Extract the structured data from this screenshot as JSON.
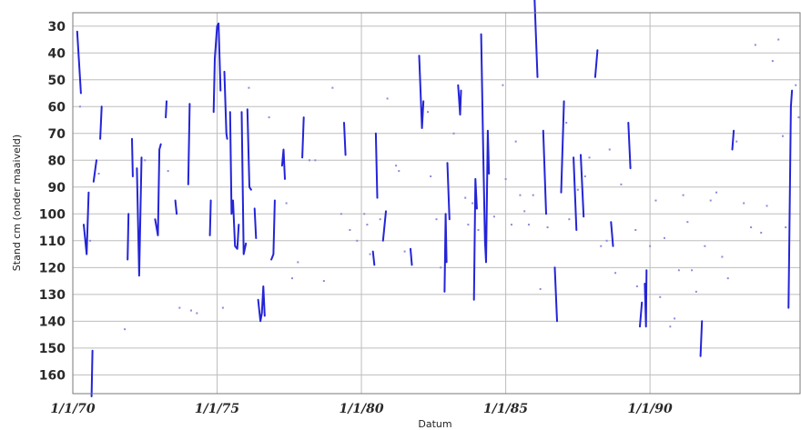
{
  "colors": {
    "series": "#2424d8",
    "grid": "#bdbdbd",
    "frame": "#7a7a7a",
    "background": "#ffffff"
  },
  "chart_data": {
    "type": "line",
    "xlabel": "Datum",
    "ylabel": "Stand cm (onder maaiveld)",
    "x_unit": "year",
    "ylim": [
      167,
      25
    ],
    "y_inverted": true,
    "y_ticks": [
      "30",
      "40",
      "50",
      "60",
      "70",
      "80",
      "90",
      "100",
      "110",
      "120",
      "130",
      "140",
      "150",
      "160"
    ],
    "xlim": [
      1970.0,
      1995.2
    ],
    "x_ticks": [
      {
        "value": 1970,
        "label": "1/1/70"
      },
      {
        "value": 1975,
        "label": "1/1/75"
      },
      {
        "value": 1980,
        "label": "1/1/80"
      },
      {
        "value": 1985,
        "label": "1/1/85"
      },
      {
        "value": 1990,
        "label": "1/1/90"
      }
    ],
    "grid": true,
    "series": [
      {
        "segments": [
          [
            [
              1970.15,
              32
            ],
            [
              1970.28,
              55
            ]
          ],
          [
            [
              1970.38,
              104
            ],
            [
              1970.48,
              115
            ],
            [
              1970.55,
              92
            ]
          ],
          [
            [
              1970.65,
              168
            ],
            [
              1970.68,
              151
            ]
          ],
          [
            [
              1970.72,
              88
            ],
            [
              1970.82,
              80
            ]
          ],
          [
            [
              1970.95,
              72
            ],
            [
              1971.0,
              60
            ]
          ],
          [
            [
              1971.9,
              117
            ],
            [
              1971.93,
              100
            ]
          ],
          [
            [
              1972.05,
              72
            ],
            [
              1972.08,
              86
            ]
          ],
          [
            [
              1972.22,
              83
            ],
            [
              1972.3,
              123
            ],
            [
              1972.38,
              79
            ]
          ],
          [
            [
              1972.85,
              102
            ],
            [
              1972.95,
              108
            ],
            [
              1973.0,
              76
            ],
            [
              1973.05,
              74
            ]
          ],
          [
            [
              1973.22,
              64
            ],
            [
              1973.25,
              58
            ]
          ],
          [
            [
              1973.55,
              95
            ],
            [
              1973.6,
              100
            ]
          ],
          [
            [
              1974.0,
              89
            ],
            [
              1974.05,
              59
            ]
          ],
          [
            [
              1974.75,
              108
            ],
            [
              1974.78,
              95
            ]
          ],
          [
            [
              1974.88,
              62
            ],
            [
              1974.92,
              42
            ],
            [
              1975.0,
              30
            ],
            [
              1975.05,
              29
            ],
            [
              1975.12,
              54
            ]
          ],
          [
            [
              1975.25,
              47
            ],
            [
              1975.32,
              70
            ],
            [
              1975.35,
              72
            ]
          ],
          [
            [
              1975.45,
              62
            ],
            [
              1975.5,
              100
            ],
            [
              1975.55,
              95
            ],
            [
              1975.62,
              112
            ],
            [
              1975.7,
              113
            ],
            [
              1975.75,
              104
            ]
          ],
          [
            [
              1975.85,
              62
            ],
            [
              1975.92,
              115
            ],
            [
              1976.0,
              111
            ]
          ],
          [
            [
              1976.05,
              61
            ],
            [
              1976.12,
              90
            ],
            [
              1976.18,
              91
            ]
          ],
          [
            [
              1976.3,
              98
            ],
            [
              1976.35,
              109
            ]
          ],
          [
            [
              1976.42,
              132
            ],
            [
              1976.5,
              140
            ],
            [
              1976.55,
              137
            ],
            [
              1976.6,
              127
            ],
            [
              1976.65,
              138
            ]
          ],
          [
            [
              1976.88,
              117
            ],
            [
              1976.95,
              115
            ],
            [
              1977.0,
              95
            ]
          ],
          [
            [
              1977.25,
              82
            ],
            [
              1977.3,
              76
            ],
            [
              1977.35,
              87
            ]
          ],
          [
            [
              1977.95,
              79
            ],
            [
              1978.0,
              64
            ]
          ],
          [
            [
              1979.4,
              66
            ],
            [
              1979.45,
              78
            ]
          ],
          [
            [
              1980.4,
              114
            ],
            [
              1980.45,
              119
            ]
          ],
          [
            [
              1980.5,
              70
            ],
            [
              1980.55,
              94
            ]
          ],
          [
            [
              1980.75,
              110
            ],
            [
              1980.85,
              99
            ]
          ],
          [
            [
              1981.7,
              113
            ],
            [
              1981.75,
              119
            ]
          ],
          [
            [
              1982.0,
              41
            ],
            [
              1982.1,
              68
            ],
            [
              1982.15,
              58
            ]
          ],
          [
            [
              1982.88,
              129
            ],
            [
              1982.92,
              100
            ],
            [
              1982.95,
              118
            ]
          ],
          [
            [
              1982.98,
              81
            ],
            [
              1983.05,
              102
            ]
          ],
          [
            [
              1983.35,
              52
            ],
            [
              1983.42,
              63
            ],
            [
              1983.45,
              54
            ]
          ],
          [
            [
              1983.9,
              132
            ],
            [
              1983.95,
              87
            ],
            [
              1984.0,
              98
            ]
          ],
          [
            [
              1984.15,
              33
            ],
            [
              1984.22,
              77
            ],
            [
              1984.28,
              110
            ],
            [
              1984.32,
              118
            ],
            [
              1984.38,
              69
            ],
            [
              1984.42,
              85
            ]
          ],
          [
            [
              1986.0,
              20
            ],
            [
              1986.1,
              49
            ]
          ],
          [
            [
              1986.3,
              69
            ],
            [
              1986.4,
              100
            ]
          ],
          [
            [
              1986.7,
              120
            ],
            [
              1986.78,
              140
            ]
          ],
          [
            [
              1986.92,
              92
            ],
            [
              1987.02,
              58
            ]
          ],
          [
            [
              1987.35,
              79
            ],
            [
              1987.45,
              106
            ]
          ],
          [
            [
              1987.6,
              78
            ],
            [
              1987.7,
              101
            ]
          ],
          [
            [
              1988.1,
              49
            ],
            [
              1988.18,
              39
            ]
          ],
          [
            [
              1988.65,
              103
            ],
            [
              1988.72,
              112
            ]
          ],
          [
            [
              1989.25,
              66
            ],
            [
              1989.32,
              83
            ]
          ],
          [
            [
              1989.65,
              142
            ],
            [
              1989.72,
              133
            ]
          ],
          [
            [
              1989.82,
              126
            ],
            [
              1989.86,
              142
            ],
            [
              1989.88,
              121
            ]
          ],
          [
            [
              1991.75,
              153
            ],
            [
              1991.8,
              140
            ]
          ],
          [
            [
              1992.85,
              76
            ],
            [
              1992.9,
              69
            ]
          ],
          [
            [
              1994.8,
              135
            ],
            [
              1994.88,
              60
            ],
            [
              1994.92,
              54
            ]
          ]
        ]
      }
    ],
    "scatter_points": [
      [
        1970.25,
        60
      ],
      [
        1970.6,
        110
      ],
      [
        1970.9,
        85
      ],
      [
        1971.8,
        143
      ],
      [
        1972.5,
        80
      ],
      [
        1973.3,
        84
      ],
      [
        1973.7,
        135
      ],
      [
        1974.1,
        136
      ],
      [
        1974.3,
        137
      ],
      [
        1975.2,
        135
      ],
      [
        1976.1,
        53
      ],
      [
        1976.8,
        64
      ],
      [
        1977.4,
        96
      ],
      [
        1977.6,
        124
      ],
      [
        1977.8,
        118
      ],
      [
        1978.2,
        80
      ],
      [
        1978.4,
        80
      ],
      [
        1978.7,
        125
      ],
      [
        1979.0,
        53
      ],
      [
        1979.3,
        100
      ],
      [
        1979.6,
        106
      ],
      [
        1979.85,
        110
      ],
      [
        1980.1,
        100
      ],
      [
        1980.2,
        104
      ],
      [
        1980.3,
        115
      ],
      [
        1980.65,
        102
      ],
      [
        1980.9,
        57
      ],
      [
        1981.2,
        82
      ],
      [
        1981.3,
        84
      ],
      [
        1981.5,
        114
      ],
      [
        1982.3,
        62
      ],
      [
        1982.4,
        86
      ],
      [
        1982.6,
        102
      ],
      [
        1982.75,
        120
      ],
      [
        1983.2,
        70
      ],
      [
        1983.6,
        94
      ],
      [
        1983.7,
        104
      ],
      [
        1983.85,
        96
      ],
      [
        1984.05,
        106
      ],
      [
        1984.6,
        101
      ],
      [
        1984.9,
        52
      ],
      [
        1985.0,
        87
      ],
      [
        1985.2,
        104
      ],
      [
        1985.35,
        73
      ],
      [
        1985.5,
        93
      ],
      [
        1985.65,
        99
      ],
      [
        1985.8,
        104
      ],
      [
        1985.95,
        93
      ],
      [
        1986.2,
        128
      ],
      [
        1986.45,
        105
      ],
      [
        1987.1,
        66
      ],
      [
        1987.2,
        102
      ],
      [
        1987.5,
        91
      ],
      [
        1987.75,
        86
      ],
      [
        1987.9,
        79
      ],
      [
        1988.3,
        112
      ],
      [
        1988.5,
        110
      ],
      [
        1988.6,
        76
      ],
      [
        1988.8,
        122
      ],
      [
        1989.0,
        89
      ],
      [
        1989.5,
        106
      ],
      [
        1989.55,
        127
      ],
      [
        1990.0,
        112
      ],
      [
        1990.2,
        95
      ],
      [
        1990.35,
        131
      ],
      [
        1990.5,
        109
      ],
      [
        1990.7,
        142
      ],
      [
        1990.85,
        139
      ],
      [
        1991.0,
        121
      ],
      [
        1991.15,
        93
      ],
      [
        1991.3,
        103
      ],
      [
        1991.45,
        121
      ],
      [
        1991.6,
        129
      ],
      [
        1991.9,
        112
      ],
      [
        1992.1,
        95
      ],
      [
        1992.3,
        92
      ],
      [
        1992.5,
        116
      ],
      [
        1992.7,
        124
      ],
      [
        1993.0,
        73
      ],
      [
        1993.25,
        96
      ],
      [
        1993.5,
        105
      ],
      [
        1993.65,
        37
      ],
      [
        1993.85,
        107
      ],
      [
        1994.05,
        97
      ],
      [
        1994.25,
        43
      ],
      [
        1994.45,
        35
      ],
      [
        1994.6,
        71
      ],
      [
        1994.7,
        105
      ],
      [
        1995.05,
        52
      ],
      [
        1995.15,
        64
      ]
    ]
  }
}
